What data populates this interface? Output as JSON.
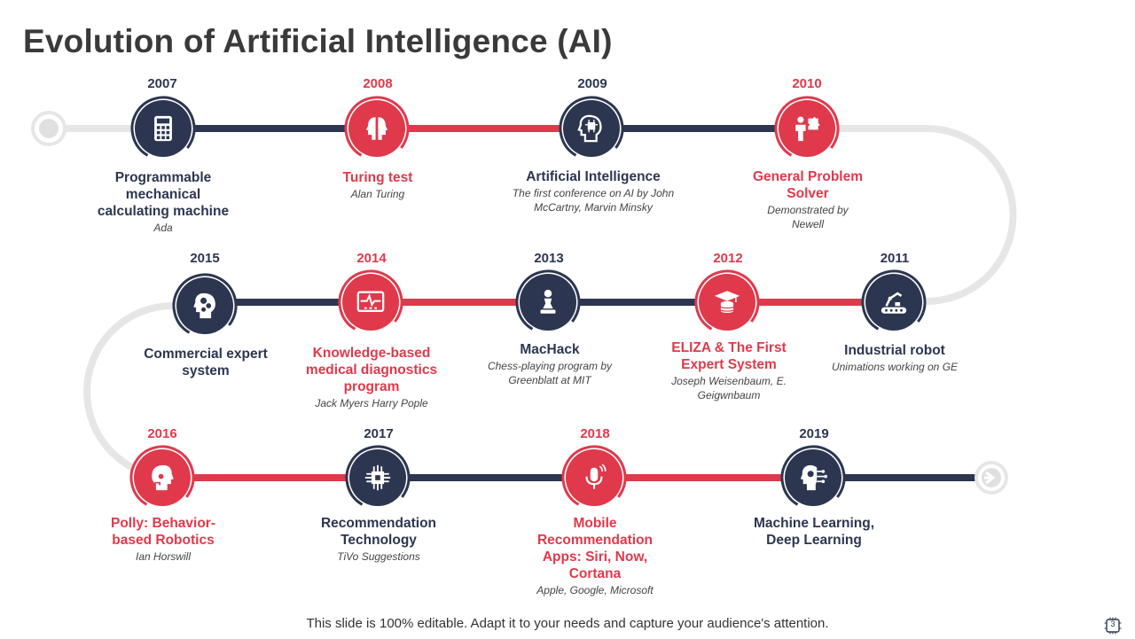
{
  "title": "Evolution of Artificial Intelligence (AI)",
  "footer": "This slide is 100% editable. Adapt it to your needs and capture your audience's attention.",
  "page_number": "3",
  "colors": {
    "dark": "#2d3650",
    "red": "#e0394b",
    "track": "#e6e6e6"
  },
  "milestones": [
    {
      "year": "2007",
      "title": "Programmable mechanical calculating machine",
      "sub": "Ada",
      "color": "dark",
      "icon": "calculator-icon"
    },
    {
      "year": "2008",
      "title": "Turing test",
      "sub": "Alan Turing",
      "color": "red",
      "icon": "two-faces-icon"
    },
    {
      "year": "2009",
      "title": "Artificial  Intelligence",
      "sub": "The first conference on AI by John McCartny,  Marvin Minsky",
      "color": "dark",
      "icon": "ai-head-icon"
    },
    {
      "year": "2010",
      "title": "General Problem Solver",
      "sub": "Demonstrated  by Newell",
      "color": "red",
      "icon": "person-puzzle-icon"
    },
    {
      "year": "2011",
      "title": "Industrial robot",
      "sub": "Unimations working on GE",
      "color": "dark",
      "icon": "robot-arm-icon"
    },
    {
      "year": "2012",
      "title": "ELIZA & The First Expert System",
      "sub": "Joseph Weisenbaum, E. Geigwnbaum",
      "color": "red",
      "icon": "graduate-database-icon"
    },
    {
      "year": "2013",
      "title": "MacHack",
      "sub": "Chess-playing program by Greenblatt at MIT",
      "color": "dark",
      "icon": "chess-piece-icon"
    },
    {
      "year": "2014",
      "title": "Knowledge-based medical diagnostics program",
      "sub": "Jack Myers Harry Pople",
      "color": "red",
      "icon": "monitor-pulse-icon"
    },
    {
      "year": "2015",
      "title": "Commercial expert system",
      "sub": "",
      "color": "dark",
      "icon": "head-gears-icon"
    },
    {
      "year": "2016",
      "title": "Polly: Behavior-based Robotics",
      "sub": "Ian Horswill",
      "color": "red",
      "icon": "robot-head-icon"
    },
    {
      "year": "2017",
      "title": "Recommendation Technology",
      "sub": "TiVo Suggestions",
      "color": "dark",
      "icon": "chip-icon"
    },
    {
      "year": "2018",
      "title": "Mobile Recommendation Apps: Siri, Now, Cortana",
      "sub": "Apple, Google, Microsoft",
      "color": "red",
      "icon": "microphone-icon"
    },
    {
      "year": "2019",
      "title": "Machine Learning, Deep Learning",
      "sub": "",
      "color": "dark",
      "icon": "head-circuit-icon"
    }
  ]
}
